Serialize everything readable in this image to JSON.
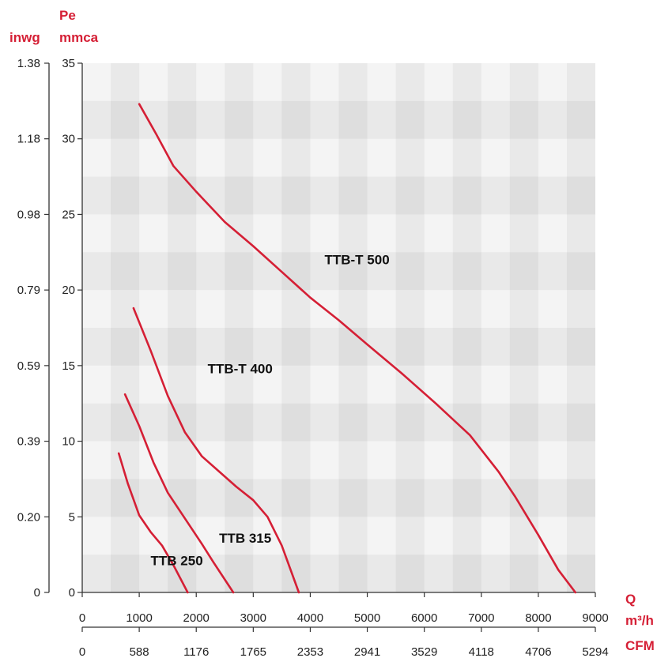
{
  "chart_data": {
    "type": "line",
    "units": {
      "left_outer": "inwg",
      "left_inner_line1": "Pe",
      "left_inner_line2": "mmca",
      "x_line1": "Q",
      "x_line2": "m³/h",
      "x_secondary": "CFM"
    },
    "y_ticks_mmca": [
      "0",
      "5",
      "10",
      "15",
      "20",
      "25",
      "30",
      "35"
    ],
    "y_ticks_inwg": [
      "0",
      "0.20",
      "0.39",
      "0.59",
      "0.79",
      "0.98",
      "1.18",
      "1.38"
    ],
    "x_ticks_m3h": [
      "0",
      "1000",
      "2000",
      "3000",
      "4000",
      "5000",
      "6000",
      "7000",
      "8000",
      "9000"
    ],
    "x_ticks_cfm": [
      "0",
      "588",
      "1176",
      "1765",
      "2353",
      "2941",
      "3529",
      "4118",
      "4706",
      "5294"
    ],
    "xlim": [
      0,
      9000
    ],
    "ylim": [
      0,
      35
    ],
    "grid": "alternating shaded bands",
    "line_color": "#d51f35",
    "series": [
      {
        "name": "TTB 250",
        "label_at": [
          1200,
          1.8
        ],
        "points": [
          [
            640,
            9.2
          ],
          [
            800,
            7.2
          ],
          [
            1000,
            5.1
          ],
          [
            1200,
            4.0
          ],
          [
            1400,
            3.1
          ],
          [
            1600,
            1.8
          ],
          [
            1850,
            0
          ]
        ]
      },
      {
        "name": "TTB 315",
        "label_at": [
          2400,
          3.3
        ],
        "points": [
          [
            750,
            13.1
          ],
          [
            1000,
            11.0
          ],
          [
            1250,
            8.6
          ],
          [
            1500,
            6.6
          ],
          [
            1800,
            4.9
          ],
          [
            2100,
            3.2
          ],
          [
            2300,
            2.0
          ],
          [
            2650,
            0
          ]
        ]
      },
      {
        "name": "TTB-T 400",
        "label_at": [
          2200,
          14.5
        ],
        "points": [
          [
            900,
            18.8
          ],
          [
            1200,
            16.0
          ],
          [
            1500,
            13.0
          ],
          [
            1800,
            10.6
          ],
          [
            2100,
            9.0
          ],
          [
            2400,
            8.0
          ],
          [
            2700,
            7.0
          ],
          [
            3000,
            6.1
          ],
          [
            3250,
            5.0
          ],
          [
            3500,
            3.1
          ],
          [
            3800,
            0
          ]
        ]
      },
      {
        "name": "TTB-T 500",
        "label_at": [
          4250,
          21.7
        ],
        "points": [
          [
            1000,
            32.3
          ],
          [
            1300,
            30.3
          ],
          [
            1600,
            28.2
          ],
          [
            2000,
            26.5
          ],
          [
            2500,
            24.5
          ],
          [
            3000,
            22.9
          ],
          [
            3500,
            21.2
          ],
          [
            4000,
            19.5
          ],
          [
            4500,
            18.0
          ],
          [
            5000,
            16.4
          ],
          [
            5600,
            14.5
          ],
          [
            6200,
            12.5
          ],
          [
            6800,
            10.4
          ],
          [
            7300,
            8.0
          ],
          [
            7600,
            6.3
          ],
          [
            8000,
            3.8
          ],
          [
            8350,
            1.5
          ],
          [
            8650,
            0
          ]
        ]
      }
    ]
  }
}
